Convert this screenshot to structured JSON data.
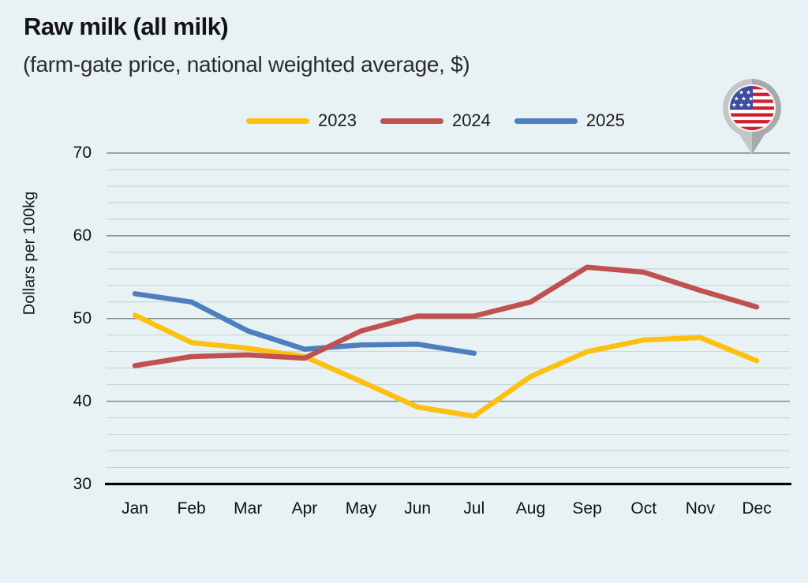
{
  "header": {
    "title": "Raw milk (all milk)",
    "subtitle": "(farm-gate price, national weighted average, $)"
  },
  "icons": {
    "location_pin": "us-flag-map-pin"
  },
  "chart_data": {
    "type": "line",
    "title": "Raw milk (all milk)",
    "subtitle": "(farm-gate price, national weighted average, $)",
    "xlabel": "",
    "ylabel": "Dollars per 100kg",
    "ylim": [
      30,
      70
    ],
    "y_major_ticks": [
      70,
      60,
      50,
      40,
      30
    ],
    "y_minor_step": 2,
    "grid": true,
    "legend_position": "top-center",
    "categories": [
      "Jan",
      "Feb",
      "Mar",
      "Apr",
      "May",
      "Jun",
      "Jul",
      "Aug",
      "Sep",
      "Oct",
      "Nov",
      "Dec"
    ],
    "series": [
      {
        "name": "2023",
        "color": "#FCC00F",
        "values": [
          50.4,
          47.1,
          46.4,
          45.4,
          42.4,
          39.3,
          38.2,
          43.0,
          46.0,
          47.4,
          47.7,
          44.9
        ]
      },
      {
        "name": "2024",
        "color": "#C05150",
        "values": [
          44.3,
          45.4,
          45.6,
          45.2,
          48.5,
          50.3,
          50.3,
          52.0,
          56.2,
          55.6,
          53.4,
          51.4
        ]
      },
      {
        "name": "2025",
        "color": "#4D7FBE",
        "values": [
          53.0,
          52.0,
          48.5,
          46.3,
          46.8,
          46.9,
          45.8,
          null,
          null,
          null,
          null,
          null
        ]
      }
    ],
    "style": {
      "background": "#e8f2f5",
      "minor_grid_color": "#c3cfd4",
      "major_grid_color": "#7f8a8f",
      "axis_color": "#000000"
    }
  }
}
